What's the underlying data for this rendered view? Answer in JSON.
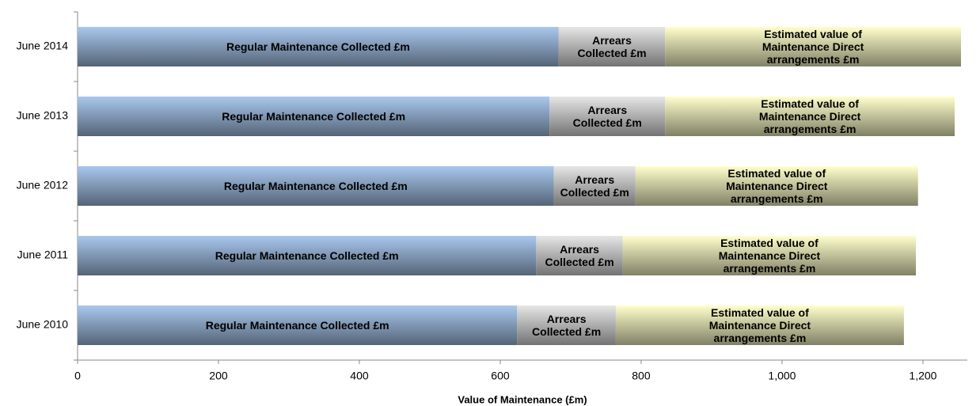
{
  "chart_data": {
    "type": "stacked-barh",
    "xlabel": "Value of Maintenance (£m)",
    "categories": [
      "June 2014",
      "June 2013",
      "June 2012",
      "June 2011",
      "June 2010"
    ],
    "series": [
      {
        "name": "Regular Maintenance Collected £m",
        "color": "#a9c8ee",
        "values": [
          683,
          670,
          676,
          651,
          624
        ]
      },
      {
        "name": "Arrears Collected £m",
        "color": "#e6e6e6",
        "values": [
          151,
          164,
          116,
          123,
          140
        ]
      },
      {
        "name": "Estimated value of Maintenance Direct arrangements £m",
        "color": "#ffffcc",
        "values": [
          420,
          411,
          401,
          416,
          409
        ]
      }
    ],
    "xlim": [
      0,
      1263
    ],
    "xticks": [
      0,
      200,
      400,
      600,
      800,
      {
        "value": 1000,
        "label": "1,000"
      },
      {
        "value": 1200,
        "label": "1,200"
      }
    ]
  }
}
